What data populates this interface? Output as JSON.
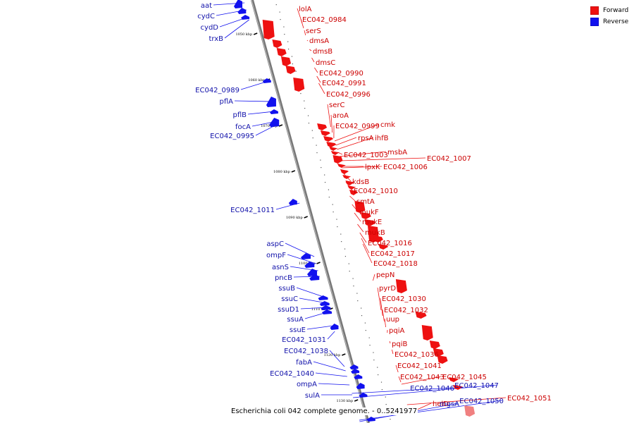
{
  "caption": "Escherichia coli 042 complete genome. - 0..5241977",
  "legend": {
    "forward_label": "Forward",
    "reverse_label": "Reverse",
    "forward_color": "#ee1111",
    "reverse_color": "#1111ee",
    "highlight_color": "#f08080"
  },
  "ticks": [
    "1050 kbp",
    "1060 kbp",
    "1070 kbp",
    "1080 kbp",
    "1090 kbp",
    "1100 kbp",
    "1110 kbp",
    "1120 kbp",
    "1130 kbp"
  ],
  "forward_labels": [
    "lolA",
    "EC042_0984",
    "serS",
    "dmsA",
    "dmsB",
    "dmsC",
    "EC042_0990",
    "EC042_0991",
    "EC042_0996",
    "serC",
    "aroA",
    "EC042_0999",
    "cmk",
    "rpsA",
    "ihfB",
    "EC042_1003",
    "msbA",
    "EC042_1007",
    "lpxK",
    "EC042_1006",
    "kdsB",
    "EC042_1010",
    "smtA",
    "mukF",
    "mukE",
    "mukB",
    "EC042_1016",
    "EC042_1017",
    "EC042_1018",
    "pepN",
    "pyrD",
    "EC042_1030",
    "EC042_1032",
    "uup",
    "pqiA",
    "pqiB",
    "EC042_1036",
    "EC042_1041",
    "EC042_1043",
    "EC042_1045",
    "EC042_1051",
    "helD"
  ],
  "reverse_labels": [
    "aat",
    "cydC",
    "cydD",
    "trxB",
    "EC042_0989",
    "pflA",
    "pflB",
    "focA",
    "EC042_0995",
    "EC042_1011",
    "aspC",
    "ompF",
    "asnS",
    "pncB",
    "ssuB",
    "ssuC",
    "ssuD1",
    "ssuA",
    "ssuE",
    "EC042_1031",
    "EC042_1038",
    "fabA",
    "EC042_1040",
    "ompA",
    "sulA",
    "EC042_1046",
    "EC042_1047",
    "EC042_1050",
    "mgsA"
  ]
}
